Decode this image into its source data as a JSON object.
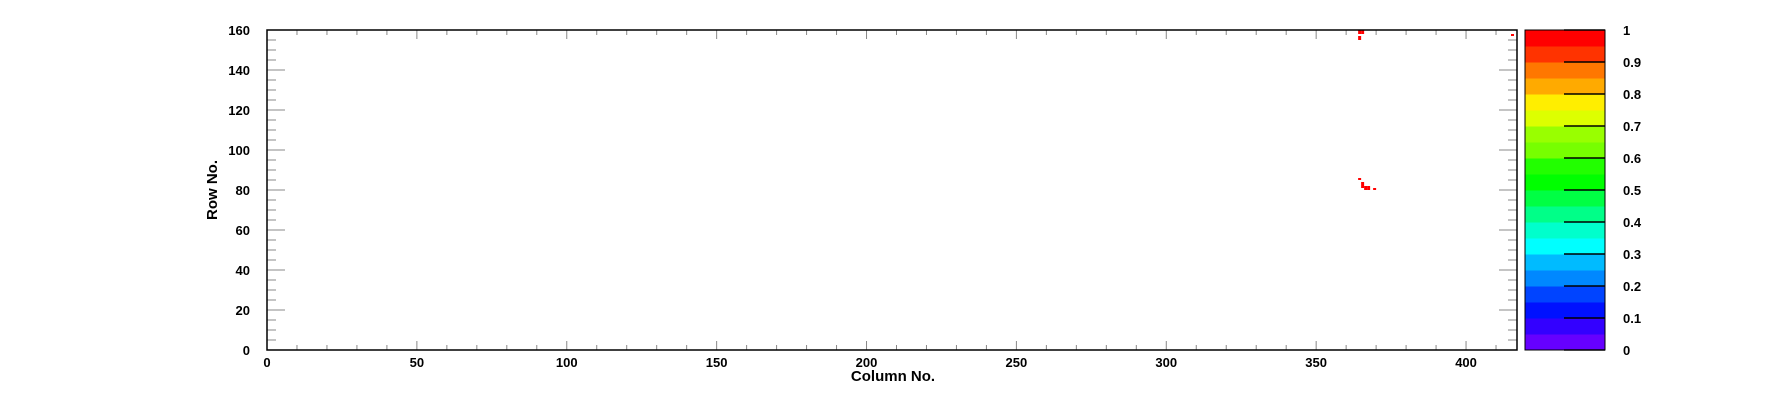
{
  "chart_data": {
    "type": "heatmap",
    "title": "",
    "xlabel": "Column No.",
    "ylabel": "Row No.",
    "xlim": [
      0,
      417
    ],
    "ylim": [
      0,
      160
    ],
    "zlim": [
      0,
      1
    ],
    "xticks": [
      "0",
      "50",
      "100",
      "150",
      "200",
      "250",
      "300",
      "350",
      "400"
    ],
    "yticks": [
      "0",
      "20",
      "40",
      "60",
      "80",
      "100",
      "120",
      "140",
      "160"
    ],
    "colorbar_ticks": [
      "0",
      "0.1",
      "0.2",
      "0.3",
      "0.4",
      "0.5",
      "0.6",
      "0.7",
      "0.8",
      "0.9",
      "1"
    ],
    "grid": false,
    "palette": [
      "#6600ff",
      "#3300ff",
      "#0011ff",
      "#0044ff",
      "#0088ff",
      "#00bbff",
      "#00ffff",
      "#00ffcc",
      "#00ff88",
      "#00ff44",
      "#00ff00",
      "#22ff00",
      "#77ff00",
      "#99ff00",
      "#ddff00",
      "#ffee00",
      "#ffaa00",
      "#ff7700",
      "#ff3300",
      "#ff0000"
    ],
    "cells": [
      {
        "col": 364,
        "row": 158,
        "value": 1
      },
      {
        "col": 364,
        "row": 159,
        "value": 1
      },
      {
        "col": 365,
        "row": 158,
        "value": 1
      },
      {
        "col": 365,
        "row": 159,
        "value": 1
      },
      {
        "col": 364,
        "row": 155,
        "value": 1
      },
      {
        "col": 364,
        "row": 156,
        "value": 1
      },
      {
        "col": 415,
        "row": 157,
        "value": 1
      },
      {
        "col": 364,
        "row": 85,
        "value": 1
      },
      {
        "col": 365,
        "row": 82,
        "value": 1
      },
      {
        "col": 365,
        "row": 83,
        "value": 1
      },
      {
        "col": 365,
        "row": 81,
        "value": 1
      },
      {
        "col": 366,
        "row": 81,
        "value": 1
      },
      {
        "col": 367,
        "row": 81,
        "value": 1
      },
      {
        "col": 366,
        "row": 80,
        "value": 1
      },
      {
        "col": 367,
        "row": 80,
        "value": 1
      },
      {
        "col": 369,
        "row": 80,
        "value": 1
      }
    ]
  }
}
